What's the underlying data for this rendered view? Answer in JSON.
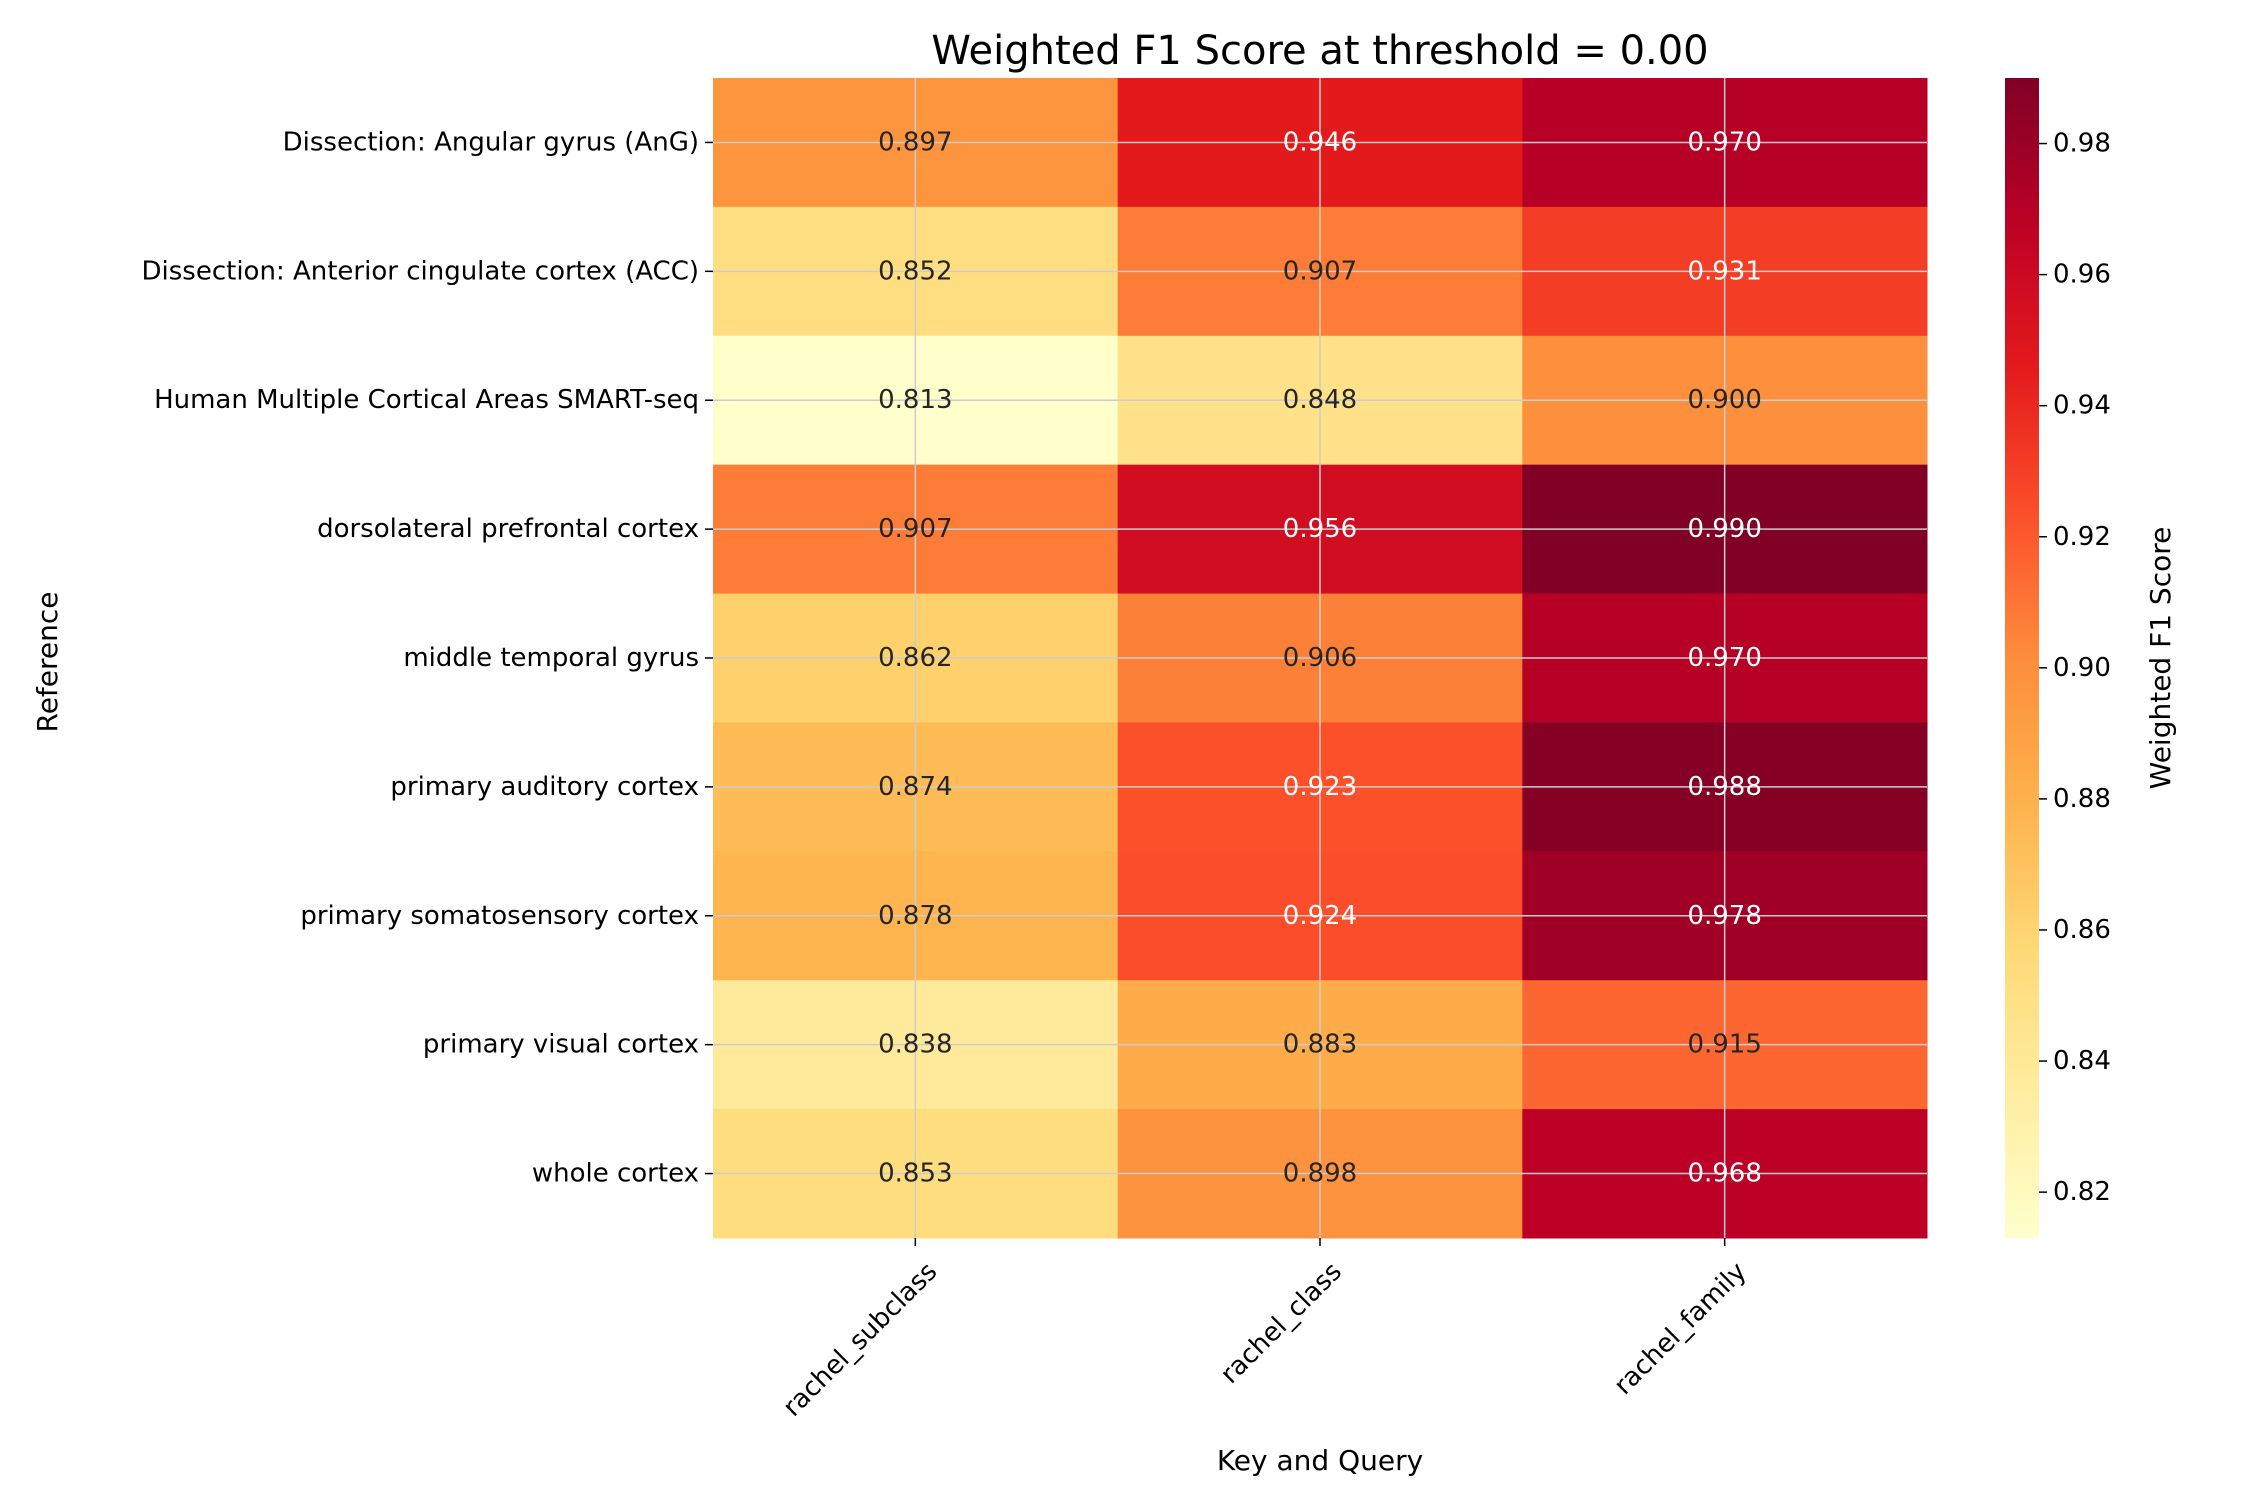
{
  "chart_data": {
    "type": "heatmap",
    "title": "Weighted F1 Score at threshold = 0.00",
    "xlabel": "Key and Query",
    "ylabel": "Reference",
    "columns": [
      "rachel_subclass",
      "rachel_class",
      "rachel_family"
    ],
    "rows": [
      "Dissection: Angular gyrus (AnG)",
      "Dissection: Anterior cingulate cortex (ACC)",
      "Human Multiple Cortical Areas SMART-seq",
      "dorsolateral prefrontal cortex",
      "middle temporal gyrus",
      "primary auditory cortex",
      "primary somatosensory cortex",
      "primary visual cortex",
      "whole cortex"
    ],
    "values": [
      [
        0.897,
        0.946,
        0.97
      ],
      [
        0.852,
        0.907,
        0.931
      ],
      [
        0.813,
        0.848,
        0.9
      ],
      [
        0.907,
        0.956,
        0.99
      ],
      [
        0.862,
        0.906,
        0.97
      ],
      [
        0.874,
        0.923,
        0.988
      ],
      [
        0.878,
        0.924,
        0.978
      ],
      [
        0.838,
        0.883,
        0.915
      ],
      [
        0.853,
        0.898,
        0.968
      ]
    ],
    "value_labels": [
      [
        "0.897",
        "0.946",
        "0.970"
      ],
      [
        "0.852",
        "0.907",
        "0.931"
      ],
      [
        "0.813",
        "0.848",
        "0.900"
      ],
      [
        "0.907",
        "0.956",
        "0.990"
      ],
      [
        "0.862",
        "0.906",
        "0.970"
      ],
      [
        "0.874",
        "0.923",
        "0.988"
      ],
      [
        "0.878",
        "0.924",
        "0.978"
      ],
      [
        "0.838",
        "0.883",
        "0.915"
      ],
      [
        "0.853",
        "0.898",
        "0.968"
      ]
    ],
    "colorbar": {
      "label": "Weighted F1 Score",
      "range": [
        0.813,
        0.99
      ],
      "ticks": [
        0.82,
        0.84,
        0.86,
        0.88,
        0.9,
        0.92,
        0.94,
        0.96,
        0.98
      ],
      "tick_labels": [
        "0.82",
        "0.84",
        "0.86",
        "0.88",
        "0.90",
        "0.92",
        "0.94",
        "0.96",
        "0.98"
      ],
      "colormap": "YlOrRd"
    },
    "grid": true
  }
}
